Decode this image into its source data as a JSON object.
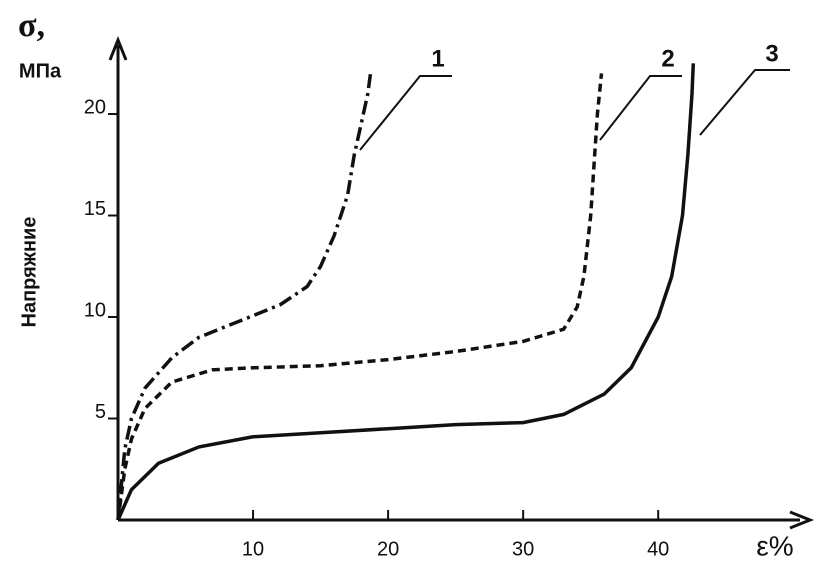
{
  "chart_data": {
    "type": "line",
    "y_symbol": "σ,",
    "y_unit": "МПа",
    "y_label": "Напряжние",
    "x_label": "ε%",
    "xlim": [
      0,
      50.5
    ],
    "ylim": [
      0,
      23.4
    ],
    "xticks": [
      10,
      20,
      30,
      40
    ],
    "yticks": [
      5,
      10,
      15,
      20
    ],
    "series": [
      {
        "name": "1",
        "color": "#111111",
        "dash": "dash-dot",
        "x": [
          0,
          0.5,
          1,
          2,
          4,
          6,
          9,
          12,
          14,
          15,
          16,
          17,
          17.5,
          18,
          18.5,
          18.7
        ],
        "values": [
          0,
          3.5,
          5,
          6.5,
          8,
          9,
          9.8,
          10.6,
          11.5,
          12.5,
          14,
          16,
          18,
          19.5,
          21,
          22
        ]
      },
      {
        "name": "2",
        "color": "#111111",
        "dash": "dashed",
        "x": [
          0,
          0.5,
          1,
          2,
          4,
          7,
          10,
          15,
          20,
          25,
          30,
          33,
          34,
          34.5,
          35,
          35.3,
          35.5,
          35.8
        ],
        "values": [
          0,
          2.5,
          4,
          5.5,
          6.8,
          7.4,
          7.5,
          7.6,
          7.9,
          8.3,
          8.8,
          9.4,
          10.5,
          12,
          15,
          18,
          20,
          22
        ]
      },
      {
        "name": "3",
        "color": "#111111",
        "dash": "solid",
        "x": [
          0,
          1,
          3,
          6,
          10,
          15,
          20,
          25,
          30,
          33,
          36,
          38,
          40,
          41,
          41.8,
          42.2,
          42.5,
          42.6
        ],
        "values": [
          0,
          1.5,
          2.8,
          3.6,
          4.1,
          4.3,
          4.5,
          4.7,
          4.8,
          5.2,
          6.2,
          7.5,
          10,
          12,
          15,
          18,
          21,
          22.5
        ]
      }
    ]
  }
}
